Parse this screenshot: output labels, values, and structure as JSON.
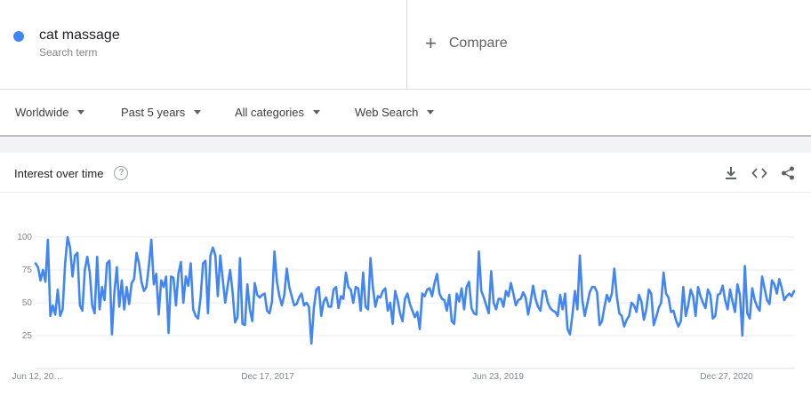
{
  "search_term": {
    "name": "cat massage",
    "subtitle": "Search term",
    "color": "#4285f4"
  },
  "compare": {
    "label": "Compare",
    "icon": "plus-icon"
  },
  "filters": {
    "region": "Worldwide",
    "time": "Past 5 years",
    "category": "All categories",
    "property": "Web Search"
  },
  "card": {
    "title": "Interest over time",
    "help_icon": "question-icon",
    "actions": [
      "download-icon",
      "embed-icon",
      "share-icon"
    ]
  },
  "chart_data": {
    "type": "line",
    "title": "",
    "xlabel": "",
    "ylabel": "",
    "ylim": [
      0,
      100
    ],
    "yticks": [
      25,
      50,
      75,
      100
    ],
    "grid": true,
    "x_tick_labels": [
      "Jun 12, 20…",
      "Dec 17, 2017",
      "Jun 23, 2019",
      "Dec 27, 2020"
    ],
    "series": [
      {
        "color": "#4285f4",
        "values": [
          80,
          77,
          67,
          75,
          66,
          98,
          40,
          48,
          41,
          60,
          40,
          45,
          80,
          100,
          92,
          70,
          86,
          88,
          48,
          44,
          75,
          85,
          73,
          48,
          42,
          85,
          45,
          62,
          52,
          80,
          82,
          26,
          58,
          77,
          47,
          67,
          45,
          62,
          49,
          65,
          68,
          88,
          80,
          66,
          59,
          62,
          78,
          98,
          64,
          72,
          41,
          67,
          62,
          70,
          27,
          70,
          69,
          48,
          72,
          81,
          50,
          70,
          63,
          80,
          45,
          40,
          38,
          54,
          80,
          82,
          42,
          86,
          92,
          86,
          55,
          86,
          68,
          50,
          63,
          75,
          58,
          35,
          39,
          84,
          34,
          33,
          64,
          45,
          36,
          65,
          56,
          54,
          56,
          57,
          44,
          42,
          51,
          89,
          66,
          55,
          48,
          56,
          76,
          62,
          55,
          48,
          49,
          54,
          57,
          48,
          50,
          47,
          19,
          46,
          60,
          62,
          40,
          51,
          54,
          47,
          47,
          60,
          62,
          46,
          55,
          53,
          73,
          62,
          60,
          50,
          62,
          61,
          44,
          73,
          47,
          45,
          84,
          61,
          47,
          55,
          54,
          59,
          61,
          44,
          50,
          34,
          59,
          52,
          42,
          36,
          53,
          57,
          49,
          44,
          39,
          43,
          30,
          57,
          55,
          60,
          61,
          55,
          65,
          72,
          57,
          53,
          52,
          44,
          56,
          36,
          34,
          57,
          51,
          61,
          45,
          62,
          66,
          46,
          42,
          41,
          89,
          59,
          54,
          48,
          42,
          74,
          50,
          45,
          53,
          53,
          47,
          59,
          55,
          65,
          57,
          48,
          52,
          53,
          58,
          54,
          41,
          51,
          63,
          53,
          47,
          44,
          59,
          59,
          50,
          46,
          44,
          43,
          40,
          56,
          45,
          57,
          30,
          26,
          41,
          59,
          45,
          86,
          52,
          40,
          49,
          58,
          62,
          62,
          58,
          33,
          36,
          47,
          56,
          51,
          57,
          76,
          55,
          42,
          40,
          32,
          37,
          40,
          50,
          48,
          43,
          56,
          51,
          37,
          45,
          60,
          57,
          33,
          39,
          46,
          50,
          73,
          57,
          54,
          43,
          44,
          37,
          32,
          36,
          62,
          40,
          48,
          60,
          55,
          40,
          62,
          55,
          50,
          46,
          60,
          56,
          38,
          40,
          56,
          57,
          63,
          52,
          45,
          60,
          51,
          43,
          64,
          56,
          25,
          78,
          42,
          38,
          61,
          52,
          47,
          44,
          70,
          61,
          52,
          49,
          67,
          64,
          57,
          68,
          61,
          52,
          55,
          57,
          55,
          59
        ]
      }
    ]
  }
}
